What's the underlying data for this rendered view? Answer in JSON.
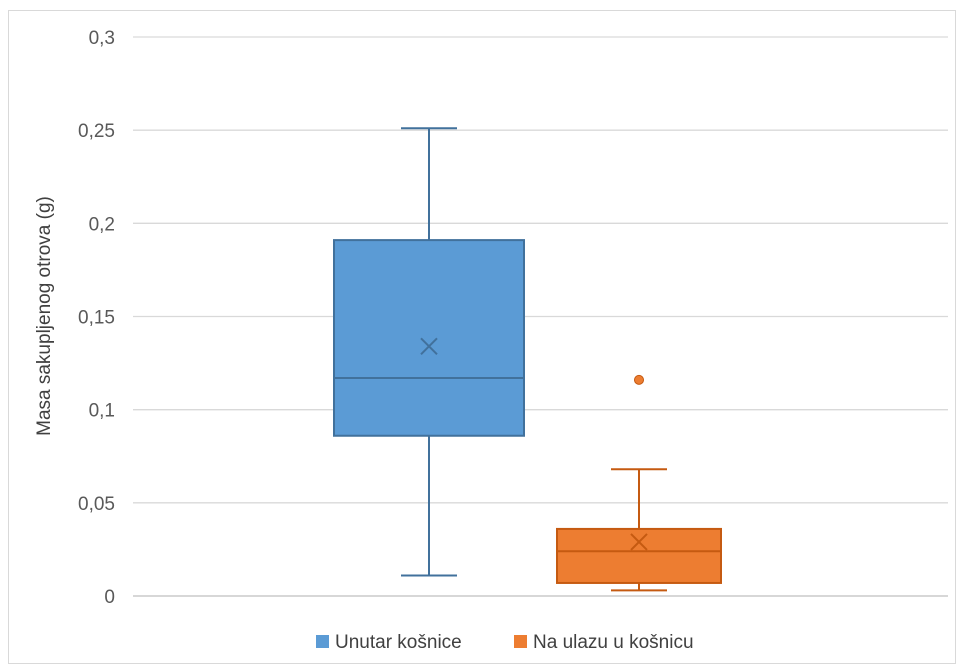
{
  "chart_data": {
    "type": "box",
    "ylabel": "Masa sakupljenog otrova (g)",
    "xlabel": "",
    "ylim": [
      0,
      0.3
    ],
    "yticks": [
      0,
      0.05,
      0.1,
      0.15,
      0.2,
      0.25,
      0.3
    ],
    "ytick_labels": [
      "0",
      "0,05",
      "0,1",
      "0,15",
      "0,2",
      "0,25",
      "0,3"
    ],
    "grid": true,
    "legend_position": "bottom",
    "series": [
      {
        "name": "Unutar košnice",
        "color": "#5b9bd5",
        "edge_color": "#41719c",
        "min": 0.011,
        "q1": 0.086,
        "median": 0.117,
        "q3": 0.191,
        "max": 0.251,
        "mean": 0.134,
        "outliers": []
      },
      {
        "name": "Na ulazu u košnicu",
        "color": "#ed7d31",
        "edge_color": "#c55a11",
        "min": 0.003,
        "q1": 0.007,
        "median": 0.024,
        "q3": 0.036,
        "max": 0.068,
        "mean": 0.029,
        "outliers": [
          0.116
        ]
      }
    ]
  }
}
